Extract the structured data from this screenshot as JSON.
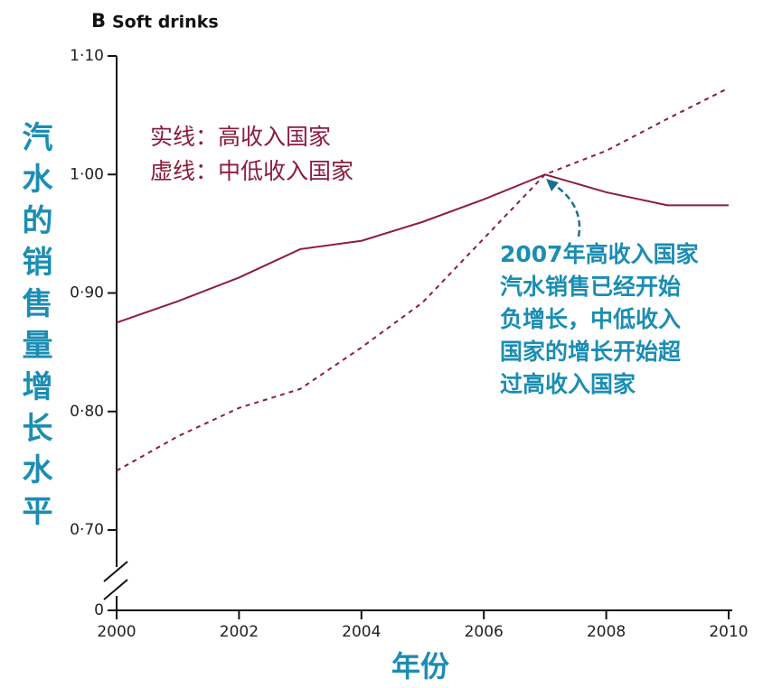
{
  "chart_data": {
    "type": "line",
    "panel": "B",
    "title": "Soft drinks",
    "x_label": "年份",
    "y_label": "汽水的销售量增长水平",
    "x": [
      2000,
      2001,
      2002,
      2003,
      2004,
      2005,
      2006,
      2007,
      2008,
      2009,
      2010
    ],
    "series": [
      {
        "name": "实线：高收入国家",
        "color": "#8c1c3e",
        "dashed": false,
        "values": [
          0.875,
          0.893,
          0.913,
          0.937,
          0.944,
          0.96,
          0.979,
          1.0,
          0.985,
          0.974,
          0.974
        ]
      },
      {
        "name": "虚线：中低收入国家",
        "color": "#8c1c3e",
        "dashed": true,
        "values": [
          0.75,
          0.779,
          0.803,
          0.819,
          0.854,
          0.892,
          0.946,
          1.0,
          1.02,
          1.047,
          1.073
        ]
      }
    ],
    "xlim": [
      2000,
      2010
    ],
    "xticks": [
      2000,
      2002,
      2004,
      2006,
      2008,
      2010
    ],
    "ylim": [
      0,
      1.1
    ],
    "y_break": [
      0,
      0.7
    ],
    "yticks": [
      0,
      {
        "value": 0.7,
        "label": "0·70"
      },
      {
        "value": 0.8,
        "label": "0·80"
      },
      {
        "value": 0.9,
        "label": "0·90"
      },
      {
        "value": 1.0,
        "label": "1·00"
      },
      {
        "value": 1.1,
        "label": "1·10"
      }
    ],
    "annotation": {
      "lines": [
        "2007年高收入国家",
        "汽水销售已经开始",
        "负增长，中低收入",
        "国家的增长开始超",
        "过高收入国家"
      ],
      "x": 2007,
      "y": 1.0
    }
  }
}
